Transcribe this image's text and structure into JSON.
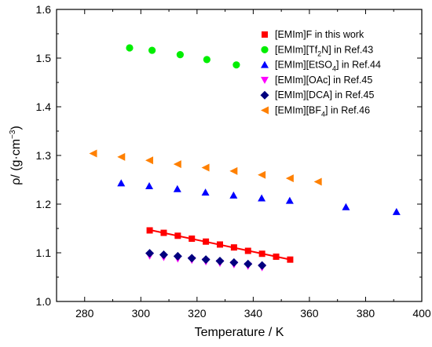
{
  "chart_data": {
    "type": "scatter",
    "xlabel": "Temperature / K",
    "ylabel": {
      "parts": [
        {
          "text": "ρ/ (g·cm",
          "style": "normal"
        },
        {
          "text": "−3",
          "style": "sup"
        },
        {
          "text": ")",
          "style": "normal"
        }
      ]
    },
    "xlim": [
      270,
      400
    ],
    "ylim": [
      1.0,
      1.6
    ],
    "xticks": [
      280,
      300,
      320,
      340,
      360,
      380,
      400
    ],
    "yticks": [
      1.0,
      1.1,
      1.2,
      1.3,
      1.4,
      1.5,
      1.6
    ],
    "xtick_labels": [
      "280",
      "300",
      "320",
      "340",
      "360",
      "380",
      "400"
    ],
    "ytick_labels": [
      "1.0",
      "1.1",
      "1.2",
      "1.3",
      "1.4",
      "1.5",
      "1.6"
    ],
    "grid": false,
    "legend_position": "top-right",
    "series": [
      {
        "name": "[EMIm]F in this work",
        "legend_parts": [
          {
            "text": "[EMIm]F in this work",
            "style": "normal"
          }
        ],
        "marker": "square",
        "color": "#ff0000",
        "fit_line": true,
        "x": [
          303.15,
          308.15,
          313.15,
          318.15,
          323.15,
          328.15,
          333.15,
          338.15,
          343.15,
          348.15,
          353.15
        ],
        "y": [
          1.146,
          1.141,
          1.135,
          1.129,
          1.123,
          1.117,
          1.111,
          1.104,
          1.098,
          1.092,
          1.086
        ]
      },
      {
        "name": "[EMIm][Tf2N] in Ref.43",
        "legend_parts": [
          {
            "text": "[EMIm][Tf",
            "style": "normal"
          },
          {
            "text": "2",
            "style": "sub"
          },
          {
            "text": "N] in Ref.43",
            "style": "normal"
          }
        ],
        "marker": "circle",
        "color": "#00ee00",
        "x": [
          296,
          304,
          314,
          323.5,
          334
        ],
        "y": [
          1.521,
          1.516,
          1.507,
          1.497,
          1.486
        ]
      },
      {
        "name": "[EMIm][EtSO4] in Ref.44",
        "legend_parts": [
          {
            "text": "[EMIm][EtSO",
            "style": "normal"
          },
          {
            "text": "4",
            "style": "sub"
          },
          {
            "text": "] in Ref.44",
            "style": "normal"
          }
        ],
        "marker": "triangle-up",
        "color": "#0000ff",
        "x": [
          293,
          303,
          313,
          323,
          333,
          343,
          353,
          373,
          391
        ],
        "y": [
          1.243,
          1.237,
          1.231,
          1.224,
          1.218,
          1.212,
          1.207,
          1.194,
          1.184
        ]
      },
      {
        "name": "[EMIm][OAc] in Ref.45",
        "legend_parts": [
          {
            "text": "[EMIm][OAc] in Ref.45",
            "style": "normal"
          }
        ],
        "marker": "triangle-down",
        "color": "#ff00ff",
        "x": [
          303.15,
          308.15,
          313.15,
          318.15,
          323.15,
          328.15,
          333.15,
          338.15,
          343.15
        ],
        "y": [
          1.094,
          1.091,
          1.088,
          1.085,
          1.082,
          1.079,
          1.076,
          1.073,
          1.07
        ]
      },
      {
        "name": "[EMIm][DCA] in Ref.45",
        "legend_parts": [
          {
            "text": "[EMIm][DCA] in Ref.45",
            "style": "normal"
          }
        ],
        "marker": "diamond",
        "color": "#00007f",
        "x": [
          303.15,
          308.15,
          313.15,
          318.15,
          323.15,
          328.15,
          333.15,
          338.15,
          343.15
        ],
        "y": [
          1.099,
          1.096,
          1.093,
          1.089,
          1.086,
          1.083,
          1.08,
          1.077,
          1.074
        ]
      },
      {
        "name": "[EMIm][BF4] in Ref.46",
        "legend_parts": [
          {
            "text": "[EMIm][BF",
            "style": "normal"
          },
          {
            "text": "4",
            "style": "sub"
          },
          {
            "text": "] in Ref.46",
            "style": "normal"
          }
        ],
        "marker": "triangle-left",
        "color": "#ff8000",
        "x": [
          283,
          293,
          303,
          313,
          323,
          333,
          343,
          353,
          363
        ],
        "y": [
          1.304,
          1.297,
          1.29,
          1.282,
          1.275,
          1.268,
          1.26,
          1.253,
          1.246
        ]
      }
    ]
  }
}
